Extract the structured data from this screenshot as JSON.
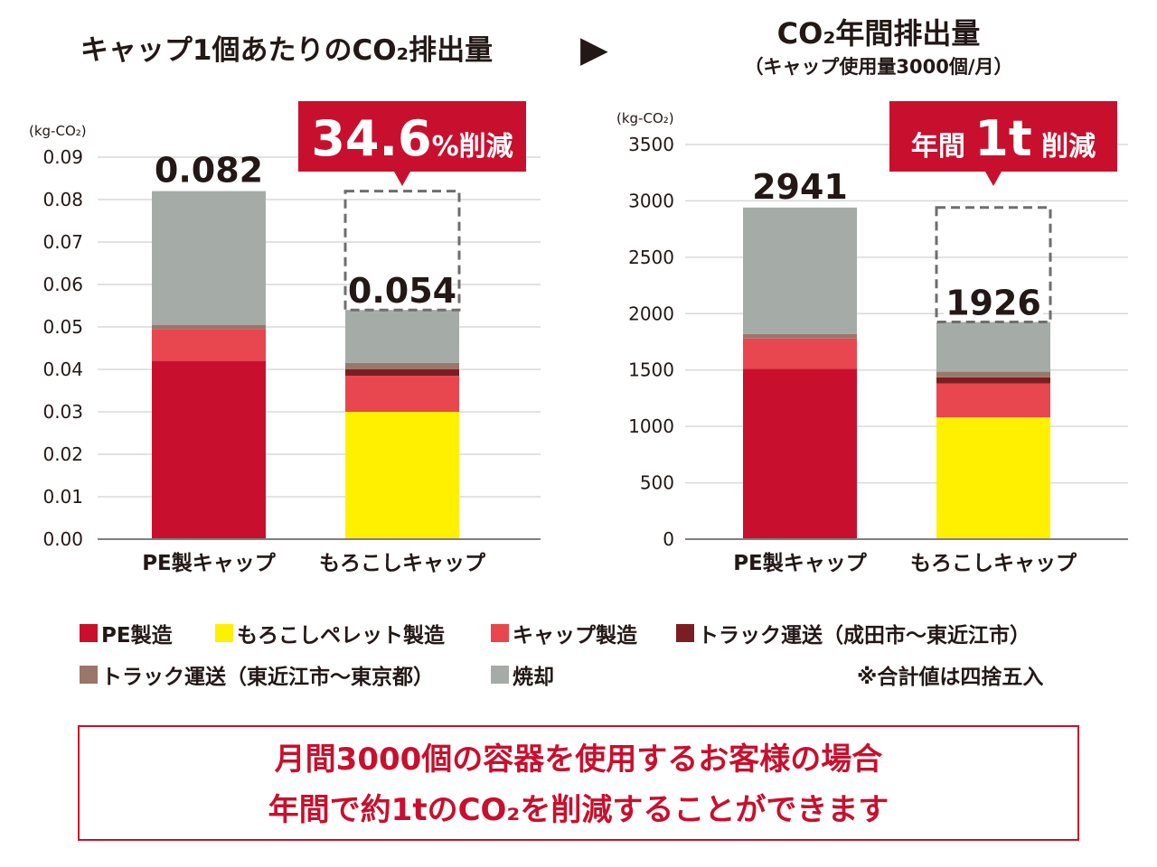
{
  "colors": {
    "pe": "#c8102e",
    "corn": "#fff000",
    "cap": "#e8474f",
    "truck1": "#7b1e22",
    "truck2": "#9b766a",
    "incin": "#a5aca7",
    "accent": "#c8102e",
    "gray_line": "#d9d9d9"
  },
  "arrow": "▶",
  "chart_data": [
    {
      "type": "bar",
      "stacked": true,
      "title": "キャップ1個あたりのCO₂排出量",
      "unit_label": "(kg-CO₂)",
      "ylim": [
        0,
        0.09
      ],
      "yticks": [
        "0.00",
        "0.01",
        "0.02",
        "0.03",
        "0.04",
        "0.05",
        "0.06",
        "0.07",
        "0.08",
        "0.09"
      ],
      "categories": [
        "PE製キャップ",
        "もろこしキャップ"
      ],
      "series": [
        {
          "name": "PE製造",
          "color_key": "pe",
          "values": [
            0.042,
            0
          ]
        },
        {
          "name": "もろこしペレット製造",
          "color_key": "corn",
          "values": [
            0,
            0.03
          ]
        },
        {
          "name": "キャップ製造",
          "color_key": "cap",
          "values": [
            0.0075,
            0.0085
          ]
        },
        {
          "name": "トラック運送（成田市～東近江市）",
          "color_key": "truck1",
          "values": [
            0,
            0.0015
          ]
        },
        {
          "name": "トラック運送（東近江市～東京都）",
          "color_key": "truck2",
          "values": [
            0.001,
            0.0015
          ]
        },
        {
          "name": "焼却",
          "color_key": "incin",
          "values": [
            0.0315,
            0.0125
          ]
        }
      ],
      "totals": [
        "0.082",
        "0.054"
      ],
      "callout": {
        "number": "34.6",
        "suffix": "%削減"
      },
      "grid": true
    },
    {
      "type": "bar",
      "stacked": true,
      "title": "CO₂年間排出量",
      "subtitle": "（キャップ使用量3000個/月）",
      "unit_label": "(kg-CO₂)",
      "ylim": [
        0,
        3500
      ],
      "yticks": [
        "0",
        "500",
        "1000",
        "1500",
        "2000",
        "2500",
        "3000",
        "3500"
      ],
      "categories": [
        "PE製キャップ",
        "もろこしキャップ"
      ],
      "series": [
        {
          "name": "PE製造",
          "color_key": "pe",
          "values": [
            1510,
            0
          ]
        },
        {
          "name": "もろこしペレット製造",
          "color_key": "corn",
          "values": [
            0,
            1080
          ]
        },
        {
          "name": "キャップ製造",
          "color_key": "cap",
          "values": [
            270,
            300
          ]
        },
        {
          "name": "トラック運送（成田市～東近江市）",
          "color_key": "truck1",
          "values": [
            0,
            55
          ]
        },
        {
          "name": "トラック運送（東近江市～東京都）",
          "color_key": "truck2",
          "values": [
            40,
            50
          ]
        },
        {
          "name": "焼却",
          "color_key": "incin",
          "values": [
            1121,
            441
          ]
        }
      ],
      "totals": [
        "2941",
        "1926"
      ],
      "callout": {
        "prefix": "年間",
        "number": "1t",
        "suffix": "削減"
      },
      "grid": true
    }
  ],
  "legend": {
    "items": [
      {
        "label": "PE製造",
        "color_key": "pe"
      },
      {
        "label": "もろこしペレット製造",
        "color_key": "corn"
      },
      {
        "label": "キャップ製造",
        "color_key": "cap"
      },
      {
        "label": "トラック運送（成田市～東近江市）",
        "color_key": "truck1"
      },
      {
        "label": "トラック運送（東近江市～東京都）",
        "color_key": "truck2"
      },
      {
        "label": "焼却",
        "color_key": "incin"
      }
    ],
    "note": "※合計値は四捨五入"
  },
  "message": {
    "line1": "月間3000個の容器を使用するお客様の場合",
    "line2": "年間で約1tのCO₂を削減することができます"
  }
}
